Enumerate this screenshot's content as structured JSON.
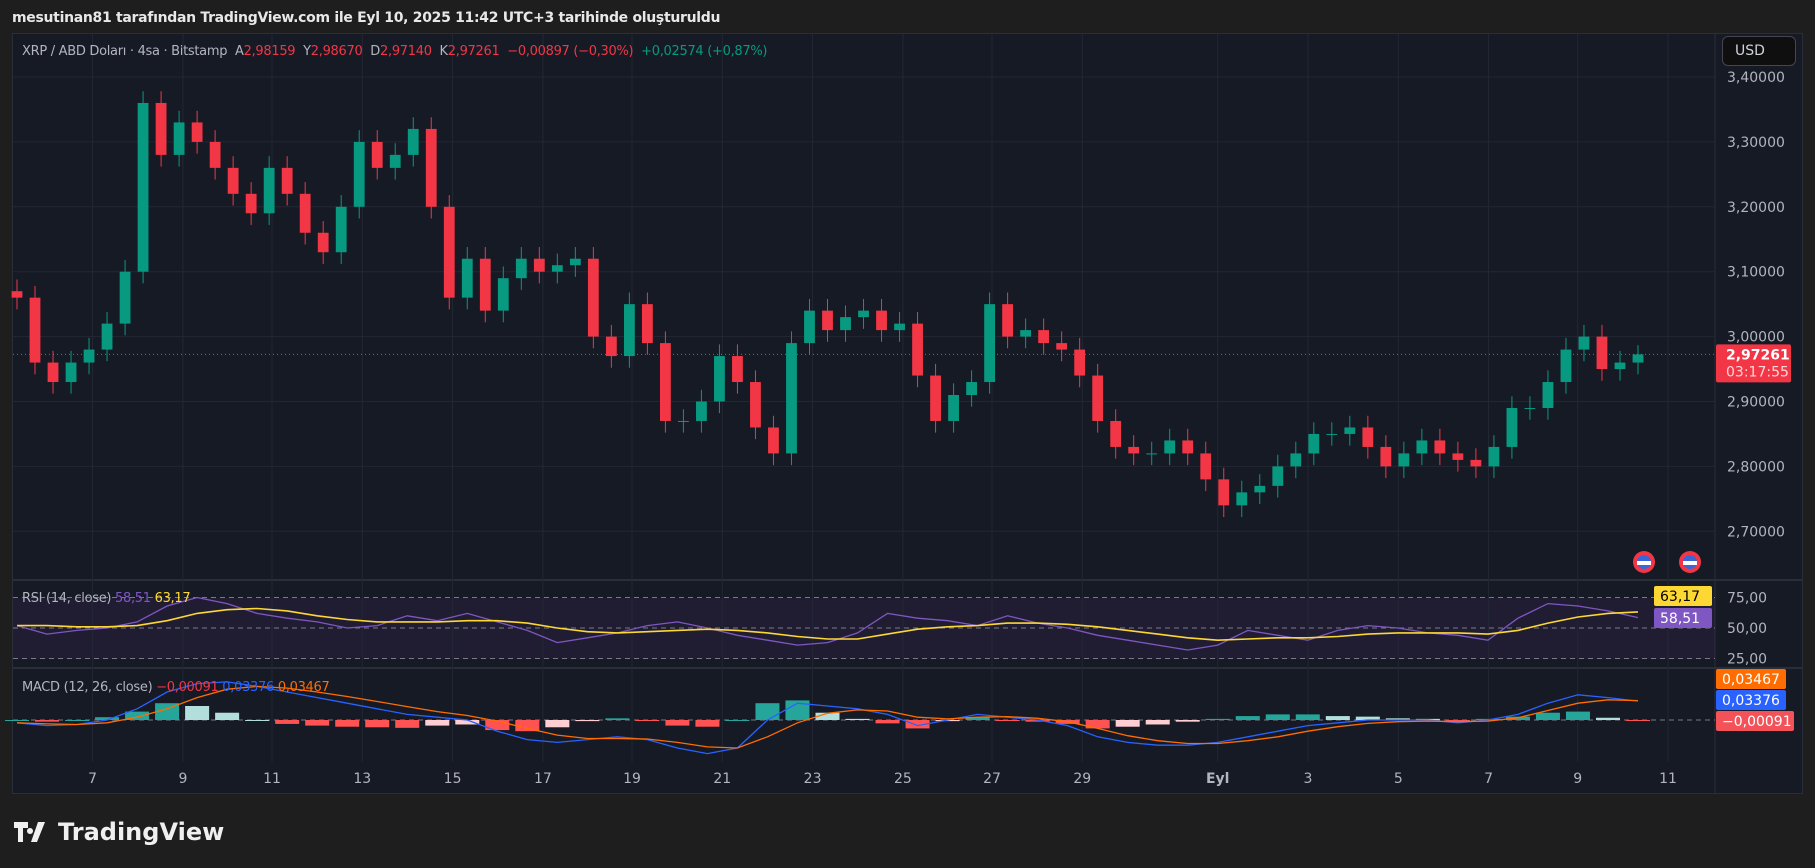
{
  "caption": "mesutinan81 tarafından TradingView.com ile Eyl 10, 2025 11:42 UTC+3 tarihinde oluşturuldu",
  "legend": {
    "symbol": "XRP / ABD Doları · 4sa · Bitstamp",
    "o_label": "A",
    "o": "2,98159",
    "h_label": "Y",
    "h": "2,98670",
    "l_label": "D",
    "l": "2,97140",
    "c_label": "K",
    "c": "2,97261",
    "change": "−0,00897 (−0,30%)",
    "change2": "+0,02574 (+0,87%)"
  },
  "currency_button": "USD",
  "price_axis": [
    "3,40000",
    "3,30000",
    "3,20000",
    "3,10000",
    "3,00000",
    "2,90000",
    "2,80000",
    "2,70000"
  ],
  "last_price": {
    "value": "2,97261",
    "countdown": "03:17:55"
  },
  "time_axis": [
    "7",
    "9",
    "11",
    "13",
    "15",
    "17",
    "19",
    "21",
    "23",
    "25",
    "27",
    "29",
    "Eyl",
    "3",
    "5",
    "7",
    "9",
    "11"
  ],
  "rsi": {
    "title": "RSI (14, close)",
    "value": "58,51",
    "ma_value": "63,17",
    "levels": [
      "75,00",
      "50,00",
      "25,00"
    ]
  },
  "macd": {
    "title": "MACD (12, 26, close)",
    "hist_value": "−0,00091",
    "macd_value": "0,03376",
    "signal_value": "0,03467"
  },
  "logo": "TradingView",
  "colors": {
    "up": "#089981",
    "down": "#f23645",
    "rsi": "#7e57c2",
    "rsi_ma": "#fdd835",
    "macd": "#2962ff",
    "signal": "#ff6d00",
    "background": "#161a25"
  },
  "icons": [
    "us-flag-event-icon",
    "us-flag-event-icon"
  ],
  "chart_data": {
    "type": "candlestick",
    "timeframe": "4sa",
    "ylim": [
      2.65,
      3.42
    ],
    "closes": [
      3.06,
      2.96,
      2.93,
      2.96,
      2.98,
      3.02,
      3.1,
      3.36,
      3.28,
      3.33,
      3.3,
      3.26,
      3.22,
      3.19,
      3.26,
      3.22,
      3.16,
      3.13,
      3.2,
      3.3,
      3.26,
      3.28,
      3.32,
      3.2,
      3.06,
      3.12,
      3.04,
      3.09,
      3.12,
      3.1,
      3.11,
      3.12,
      3.0,
      2.97,
      3.05,
      2.99,
      2.87,
      2.87,
      2.9,
      2.97,
      2.93,
      2.86,
      2.82,
      2.99,
      3.04,
      3.01,
      3.03,
      3.04,
      3.01,
      3.02,
      2.94,
      2.87,
      2.91,
      2.93,
      3.05,
      3.0,
      3.01,
      2.99,
      2.98,
      2.94,
      2.87,
      2.83,
      2.82,
      2.82,
      2.84,
      2.82,
      2.78,
      2.74,
      2.76,
      2.77,
      2.8,
      2.82,
      2.85,
      2.85,
      2.86,
      2.83,
      2.8,
      2.82,
      2.84,
      2.82,
      2.81,
      2.8,
      2.83,
      2.89,
      2.89,
      2.93,
      2.98,
      3.0,
      2.95,
      2.96,
      2.97261
    ],
    "first_open": 3.07,
    "last_high": 2.9867,
    "rsi": [
      52,
      45,
      48,
      50,
      55,
      68,
      75,
      70,
      62,
      58,
      55,
      50,
      52,
      60,
      56,
      62,
      55,
      48,
      38,
      42,
      46,
      52,
      55,
      50,
      44,
      40,
      36,
      38,
      46,
      62,
      58,
      56,
      52,
      60,
      54,
      50,
      44,
      40,
      36,
      32,
      36,
      48,
      44,
      40,
      48,
      52,
      50,
      46,
      44,
      40,
      58,
      70,
      68,
      64,
      58.51
    ],
    "rsi_ma": [
      52,
      52,
      51,
      51,
      52,
      56,
      62,
      65,
      66,
      64,
      60,
      57,
      55,
      55,
      55,
      56,
      56,
      54,
      50,
      47,
      46,
      47,
      48,
      49,
      48,
      46,
      43,
      41,
      41,
      45,
      49,
      51,
      52,
      54,
      54,
      53,
      51,
      48,
      45,
      42,
      40,
      41,
      42,
      42,
      43,
      45,
      46,
      46,
      46,
      45,
      48,
      54,
      59,
      62,
      63.17
    ],
    "macd": [
      -0.005,
      -0.01,
      -0.008,
      0.0,
      0.02,
      0.05,
      0.065,
      0.068,
      0.06,
      0.05,
      0.04,
      0.03,
      0.02,
      0.01,
      0.005,
      0.0,
      -0.02,
      -0.035,
      -0.04,
      -0.035,
      -0.03,
      -0.035,
      -0.05,
      -0.06,
      -0.05,
      0.0,
      0.03,
      0.025,
      0.02,
      0.01,
      -0.01,
      0.0,
      0.01,
      0.005,
      0.0,
      -0.01,
      -0.03,
      -0.04,
      -0.045,
      -0.045,
      -0.04,
      -0.03,
      -0.02,
      -0.01,
      -0.005,
      0.0,
      0.0,
      0.0,
      -0.005,
      0.0,
      0.01,
      0.03,
      0.045,
      0.04,
      0.03376
    ],
    "signal": [
      -0.005,
      -0.007,
      -0.008,
      -0.005,
      0.005,
      0.02,
      0.04,
      0.055,
      0.06,
      0.057,
      0.05,
      0.042,
      0.033,
      0.024,
      0.015,
      0.008,
      -0.002,
      -0.015,
      -0.027,
      -0.033,
      -0.033,
      -0.034,
      -0.04,
      -0.048,
      -0.05,
      -0.03,
      -0.005,
      0.012,
      0.018,
      0.016,
      0.005,
      0.002,
      0.005,
      0.006,
      0.003,
      -0.003,
      -0.015,
      -0.028,
      -0.037,
      -0.042,
      -0.042,
      -0.037,
      -0.03,
      -0.02,
      -0.012,
      -0.006,
      -0.003,
      -0.002,
      -0.003,
      -0.002,
      0.004,
      0.017,
      0.03,
      0.036,
      0.03467
    ]
  }
}
